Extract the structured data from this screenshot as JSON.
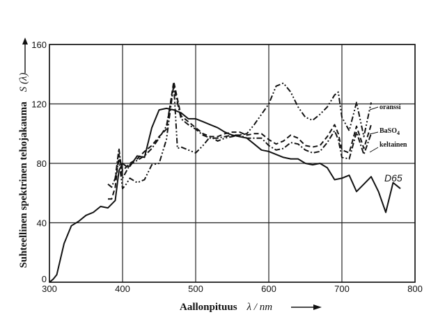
{
  "chart_data": {
    "type": "line",
    "xlabel_text": "Aallonpituus",
    "xlabel_symbol": "λ / nm",
    "ylabel_text": "Suhteellinen spektrinen tehojakauma",
    "ylabel_symbol": "S (λ)",
    "xlim": [
      300,
      800
    ],
    "ylim": [
      0,
      160
    ],
    "xticks": [
      300,
      400,
      500,
      600,
      700,
      800
    ],
    "yticks": [
      0,
      40,
      80,
      120,
      160
    ],
    "grid": true,
    "annotations": {
      "oranssi": "oranssi",
      "baso4_main": "BaSO",
      "baso4_sub": "4",
      "keltainen": "keltainen",
      "d65": "D65"
    },
    "series": [
      {
        "name": "D65",
        "style": "solid",
        "points": [
          [
            300,
            0
          ],
          [
            305,
            2
          ],
          [
            310,
            5
          ],
          [
            320,
            26
          ],
          [
            330,
            38
          ],
          [
            340,
            41
          ],
          [
            350,
            45
          ],
          [
            360,
            47
          ],
          [
            370,
            51
          ],
          [
            380,
            50
          ],
          [
            390,
            55
          ],
          [
            395,
            75
          ],
          [
            400,
            80
          ],
          [
            405,
            78
          ],
          [
            410,
            78
          ],
          [
            420,
            85
          ],
          [
            430,
            84
          ],
          [
            440,
            104
          ],
          [
            450,
            116
          ],
          [
            460,
            117
          ],
          [
            470,
            116
          ],
          [
            480,
            114
          ],
          [
            490,
            110
          ],
          [
            500,
            110
          ],
          [
            510,
            108
          ],
          [
            520,
            106
          ],
          [
            530,
            104
          ],
          [
            540,
            101
          ],
          [
            550,
            99
          ],
          [
            560,
            98
          ],
          [
            570,
            97
          ],
          [
            580,
            93
          ],
          [
            590,
            89
          ],
          [
            600,
            88
          ],
          [
            610,
            86
          ],
          [
            620,
            84
          ],
          [
            630,
            83
          ],
          [
            640,
            83
          ],
          [
            650,
            80
          ],
          [
            660,
            79
          ],
          [
            670,
            80
          ],
          [
            680,
            77
          ],
          [
            690,
            69
          ],
          [
            700,
            70
          ],
          [
            710,
            72
          ],
          [
            720,
            61
          ],
          [
            730,
            66
          ],
          [
            740,
            71
          ],
          [
            750,
            61
          ],
          [
            760,
            47
          ],
          [
            770,
            67
          ],
          [
            780,
            63
          ]
        ]
      },
      {
        "name": "BaSO4",
        "style": "dashed",
        "points": [
          [
            380,
            56
          ],
          [
            385,
            56
          ],
          [
            390,
            64
          ],
          [
            395,
            86
          ],
          [
            400,
            75
          ],
          [
            410,
            80
          ],
          [
            420,
            83
          ],
          [
            430,
            88
          ],
          [
            440,
            92
          ],
          [
            450,
            98
          ],
          [
            460,
            103
          ],
          [
            470,
            135
          ],
          [
            480,
            112
          ],
          [
            490,
            108
          ],
          [
            500,
            104
          ],
          [
            510,
            100
          ],
          [
            520,
            98
          ],
          [
            530,
            98
          ],
          [
            540,
            100
          ],
          [
            550,
            101
          ],
          [
            560,
            101
          ],
          [
            570,
            99
          ],
          [
            580,
            100
          ],
          [
            590,
            100
          ],
          [
            600,
            96
          ],
          [
            610,
            93
          ],
          [
            620,
            95
          ],
          [
            630,
            99
          ],
          [
            640,
            97
          ],
          [
            650,
            92
          ],
          [
            660,
            91
          ],
          [
            670,
            92
          ],
          [
            680,
            98
          ],
          [
            690,
            106
          ],
          [
            695,
            100
          ],
          [
            700,
            89
          ],
          [
            710,
            87
          ],
          [
            720,
            105
          ],
          [
            730,
            90
          ],
          [
            740,
            106
          ]
        ]
      },
      {
        "name": "keltainen",
        "style": "dashdot",
        "points": [
          [
            380,
            66
          ],
          [
            385,
            64
          ],
          [
            390,
            70
          ],
          [
            395,
            90
          ],
          [
            400,
            70
          ],
          [
            410,
            79
          ],
          [
            420,
            82
          ],
          [
            430,
            85
          ],
          [
            440,
            90
          ],
          [
            450,
            97
          ],
          [
            460,
            105
          ],
          [
            470,
            132
          ],
          [
            480,
            110
          ],
          [
            490,
            106
          ],
          [
            500,
            103
          ],
          [
            510,
            99
          ],
          [
            520,
            97
          ],
          [
            530,
            97
          ],
          [
            540,
            98
          ],
          [
            550,
            99
          ],
          [
            560,
            99
          ],
          [
            570,
            97
          ],
          [
            580,
            97
          ],
          [
            590,
            97
          ],
          [
            600,
            92
          ],
          [
            610,
            89
          ],
          [
            620,
            90
          ],
          [
            630,
            94
          ],
          [
            640,
            93
          ],
          [
            650,
            89
          ],
          [
            660,
            87
          ],
          [
            670,
            88
          ],
          [
            680,
            94
          ],
          [
            690,
            102
          ],
          [
            695,
            96
          ],
          [
            700,
            84
          ],
          [
            710,
            83
          ],
          [
            720,
            101
          ],
          [
            730,
            86
          ],
          [
            740,
            100
          ]
        ]
      },
      {
        "name": "oranssi",
        "style": "dashdotdot",
        "points": [
          [
            390,
            70
          ],
          [
            395,
            82
          ],
          [
            400,
            63
          ],
          [
            405,
            66
          ],
          [
            410,
            70
          ],
          [
            420,
            67
          ],
          [
            430,
            69
          ],
          [
            440,
            79
          ],
          [
            450,
            80
          ],
          [
            460,
            96
          ],
          [
            470,
            133
          ],
          [
            475,
            90
          ],
          [
            480,
            91
          ],
          [
            490,
            89
          ],
          [
            500,
            87
          ],
          [
            510,
            92
          ],
          [
            520,
            98
          ],
          [
            530,
            95
          ],
          [
            540,
            97
          ],
          [
            550,
            98
          ],
          [
            560,
            99
          ],
          [
            570,
            100
          ],
          [
            580,
            106
          ],
          [
            590,
            113
          ],
          [
            600,
            120
          ],
          [
            610,
            132
          ],
          [
            620,
            134
          ],
          [
            630,
            128
          ],
          [
            640,
            118
          ],
          [
            650,
            111
          ],
          [
            660,
            109
          ],
          [
            670,
            113
          ],
          [
            680,
            118
          ],
          [
            690,
            126
          ],
          [
            695,
            128
          ],
          [
            700,
            111
          ],
          [
            710,
            102
          ],
          [
            720,
            121
          ],
          [
            730,
            98
          ],
          [
            740,
            121
          ]
        ]
      }
    ]
  }
}
